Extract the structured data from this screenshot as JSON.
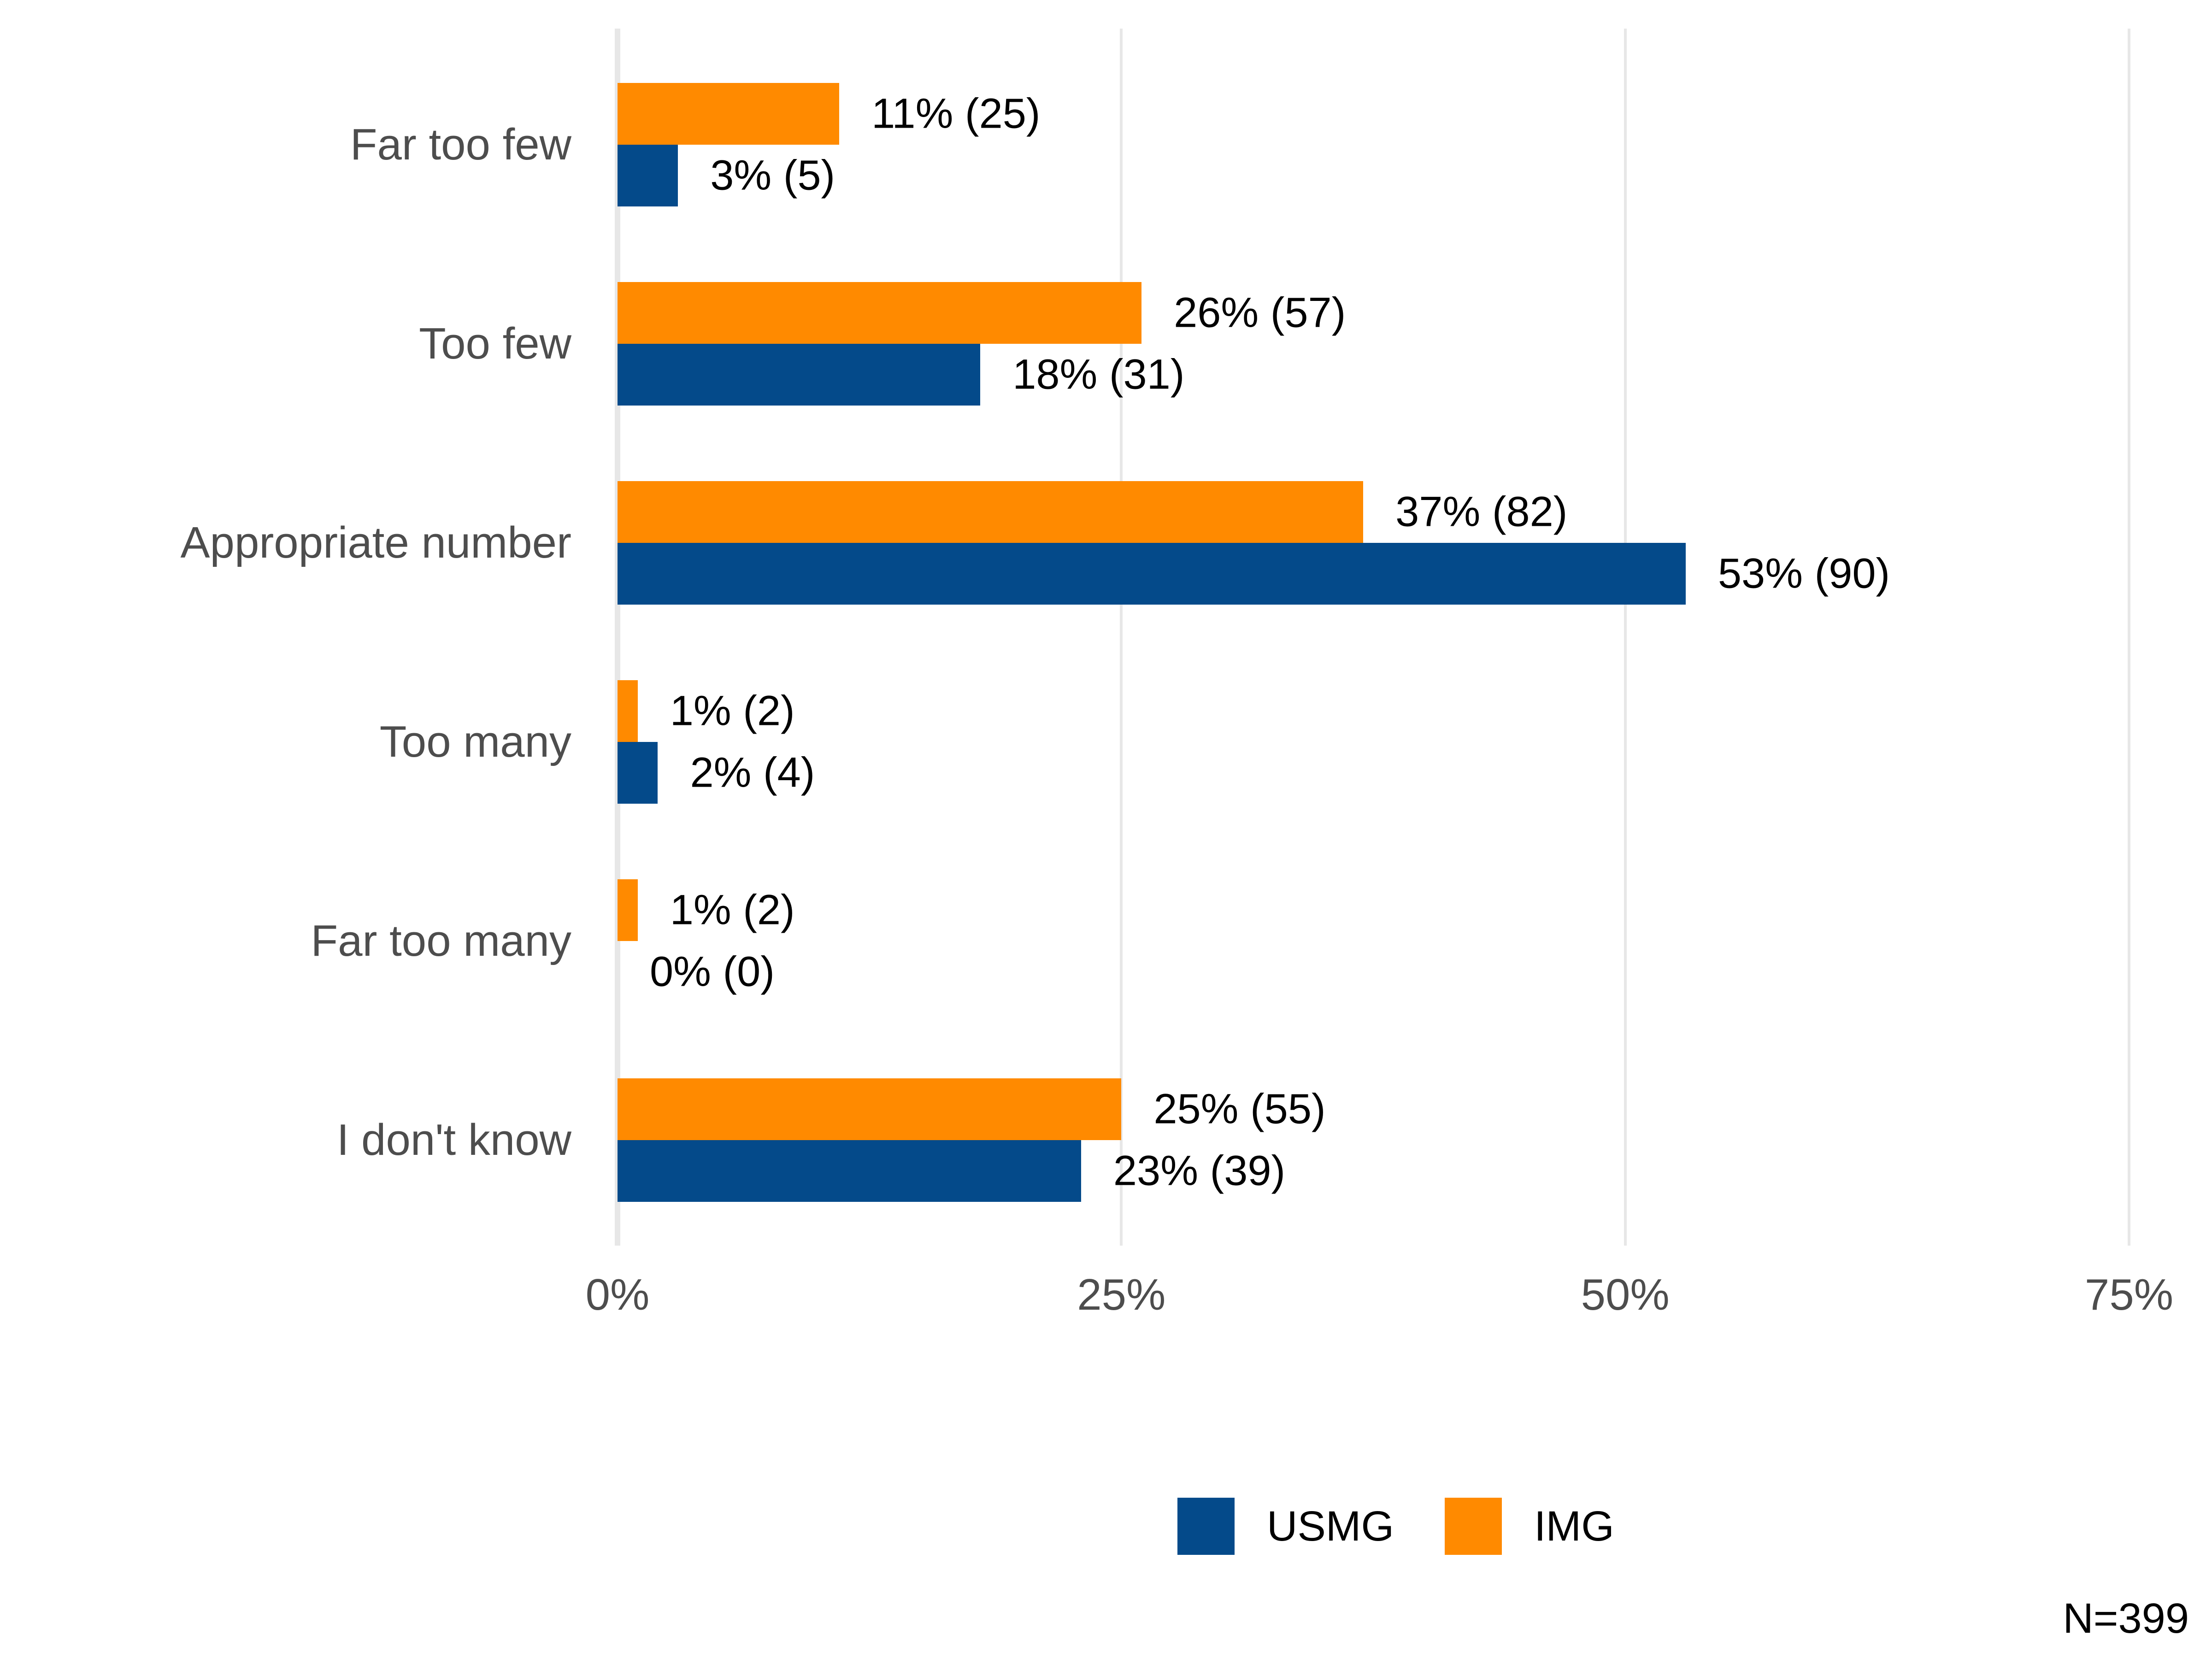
{
  "chart_data": {
    "type": "bar",
    "orientation": "horizontal",
    "title": "",
    "xlabel": "",
    "ylabel": "",
    "categories": [
      "Far too few",
      "Too few",
      "Appropriate number",
      "Too many",
      "Far too many",
      "I don't know"
    ],
    "series": [
      {
        "name": "USMG",
        "color": "#044a8a",
        "values": [
          3,
          18,
          53,
          2,
          0,
          23
        ],
        "counts": [
          5,
          31,
          90,
          4,
          0,
          39
        ],
        "labels": [
          "3% (5)",
          "18% (31)",
          "53% (90)",
          "2% (4)",
          "0% (0)",
          "23% (39)"
        ]
      },
      {
        "name": "IMG",
        "color": "#ff8a00",
        "values": [
          11,
          26,
          37,
          1,
          1,
          25
        ],
        "counts": [
          25,
          57,
          82,
          2,
          2,
          55
        ],
        "labels": [
          "11% (25)",
          "26% (57)",
          "37% (82)",
          "1% (2)",
          "1% (2)",
          "25% (55)"
        ]
      }
    ],
    "x_axis": {
      "ticks": [
        "0%",
        "25%",
        "50%",
        "75%"
      ],
      "tick_values": [
        0,
        25,
        50,
        75
      ],
      "min": 0,
      "max": 75
    },
    "grid": true,
    "legend_position": "bottom",
    "legend": [
      {
        "label": "USMG",
        "color": "#044a8a"
      },
      {
        "label": "IMG",
        "color": "#ff8a00"
      }
    ],
    "note": "N=399"
  },
  "colors": {
    "gridline": "#e7e7e7",
    "category_text": "#4d4d4d",
    "tick_text": "#4d4d4d",
    "label_text": "#000000",
    "background": "#ffffff"
  }
}
